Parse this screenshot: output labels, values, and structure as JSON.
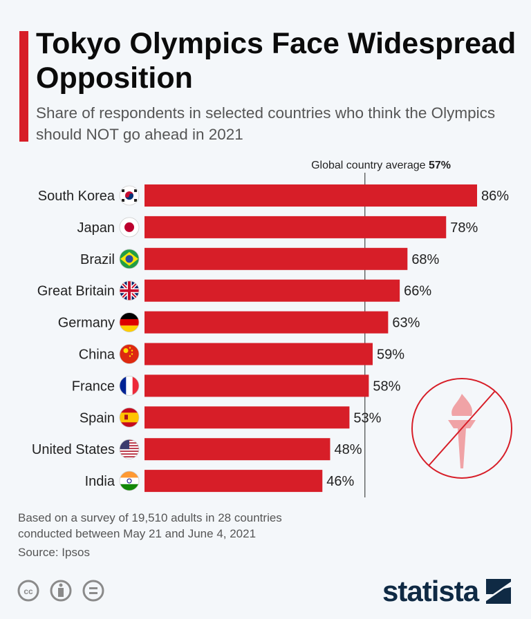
{
  "header": {
    "title": "Tokyo Olympics Face Widespread Opposition",
    "subtitle": "Share of respondents in selected countries who think the Olympics should NOT go ahead in 2021"
  },
  "chart_data": {
    "type": "bar",
    "orientation": "horizontal",
    "categories": [
      "South Korea",
      "Japan",
      "Brazil",
      "Great Britain",
      "Germany",
      "China",
      "France",
      "Spain",
      "United States",
      "India"
    ],
    "flags": [
      "kr",
      "jp",
      "br",
      "gb",
      "de",
      "cn",
      "fr",
      "es",
      "us",
      "in"
    ],
    "values": [
      86,
      78,
      68,
      66,
      63,
      59,
      58,
      53,
      48,
      46
    ],
    "value_labels": [
      "86%",
      "78%",
      "68%",
      "66%",
      "63%",
      "59%",
      "58%",
      "53%",
      "48%",
      "46%"
    ],
    "xlim": [
      0,
      100
    ],
    "unit": "%",
    "grid": false,
    "reference_line": {
      "value": 57,
      "label_prefix": "Global country average ",
      "label_value": "57%"
    },
    "colors": {
      "bar": "#d71e28",
      "reference": "#222222"
    }
  },
  "footer": {
    "note_line1": "Based on a survey of 19,510 adults in 28 countries",
    "note_line2": "conducted between May 21 and June 4, 2021",
    "source": "Source: Ipsos",
    "brand": "statista",
    "license_icons": [
      "cc-icon",
      "by-icon",
      "nd-icon"
    ]
  },
  "decor": {
    "icon": "no-torch-icon"
  }
}
